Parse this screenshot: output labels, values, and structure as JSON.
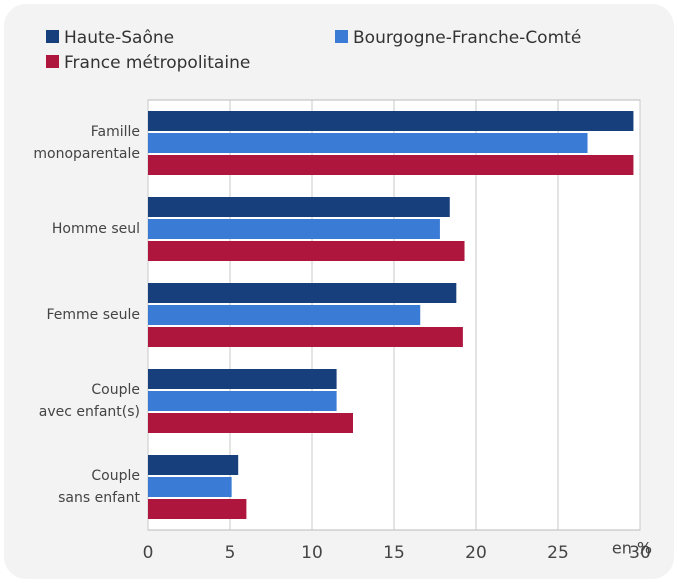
{
  "chart_data": {
    "type": "barh",
    "categories": [
      "Famille\nmonoparentale",
      "Homme seul",
      "Femme seule",
      "Couple\navec enfant(s)",
      "Couple\nsans enfant"
    ],
    "series": [
      {
        "name": "Haute-Saône",
        "color": "#163f7c",
        "values": [
          29.6,
          18.4,
          18.8,
          11.5,
          5.5
        ]
      },
      {
        "name": "Bourgogne-Franche-Comté",
        "color": "#3a7bd5",
        "values": [
          26.8,
          17.8,
          16.6,
          11.5,
          5.1
        ]
      },
      {
        "name": "France métropolitaine",
        "color": "#ae163d",
        "values": [
          29.6,
          19.3,
          19.2,
          12.5,
          6.0
        ]
      }
    ],
    "xlim": [
      0,
      30
    ],
    "xticks": [
      0,
      5,
      10,
      15,
      20,
      25,
      30
    ],
    "xlabel": "en %",
    "grid": true
  }
}
